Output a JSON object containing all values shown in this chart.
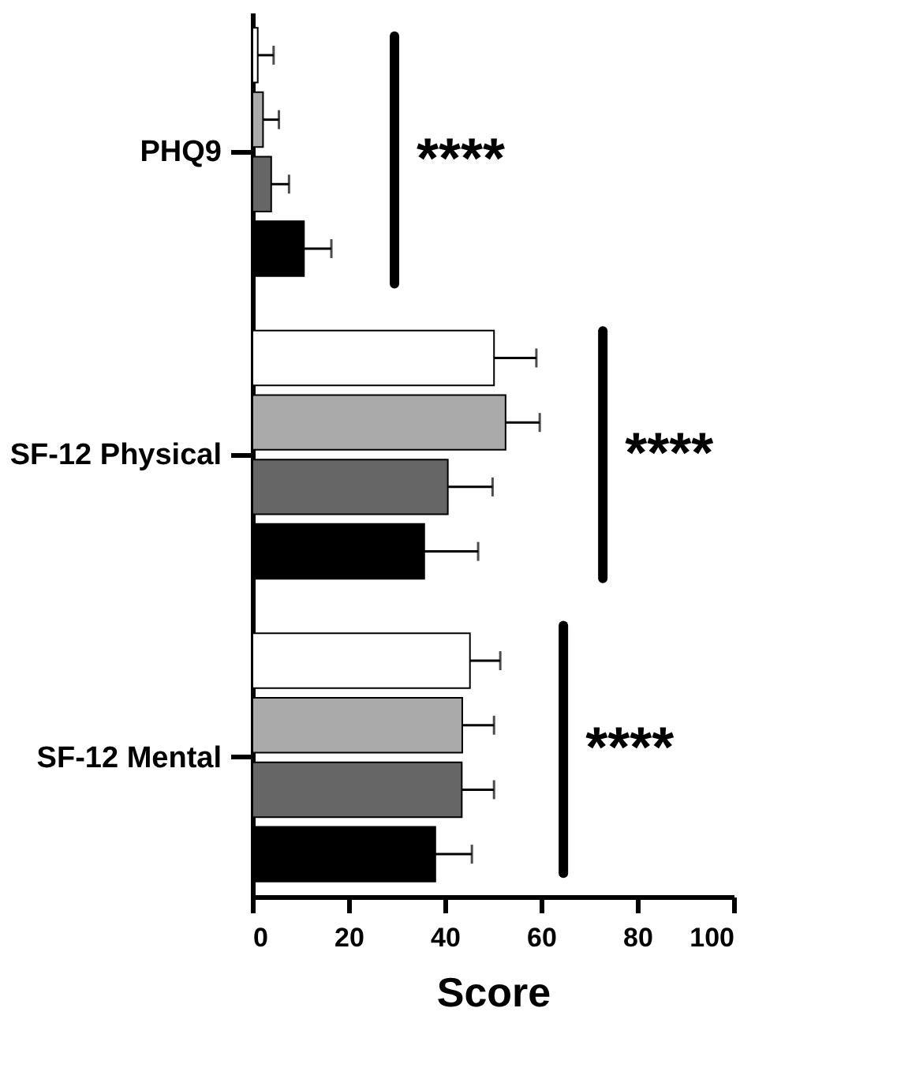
{
  "chart_data": {
    "type": "bar",
    "orientation": "horizontal",
    "xlabel": "Score",
    "categories": [
      "PHQ9",
      "SF-12 Physical",
      "SF-12 Mental"
    ],
    "series": [
      {
        "color": "#ffffff",
        "values": [
          1.1,
          50.2,
          45.2
        ],
        "errors": [
          3.3,
          8.8,
          6.3
        ]
      },
      {
        "color": "#aaaaaa",
        "values": [
          2.2,
          52.6,
          43.6
        ],
        "errors": [
          3.3,
          7.1,
          6.6
        ]
      },
      {
        "color": "#666666",
        "values": [
          3.9,
          40.6,
          43.5
        ],
        "errors": [
          3.7,
          9.3,
          6.7
        ]
      },
      {
        "color": "#000000",
        "values": [
          10.7,
          35.7,
          38.0
        ],
        "errors": [
          5.7,
          11.2,
          7.6
        ]
      }
    ],
    "xlim": [
      0,
      100
    ],
    "xticks": [
      0,
      20,
      40,
      60,
      80,
      100
    ],
    "annotations": [
      "****",
      "****",
      "****"
    ],
    "grid": false,
    "legend": false
  }
}
